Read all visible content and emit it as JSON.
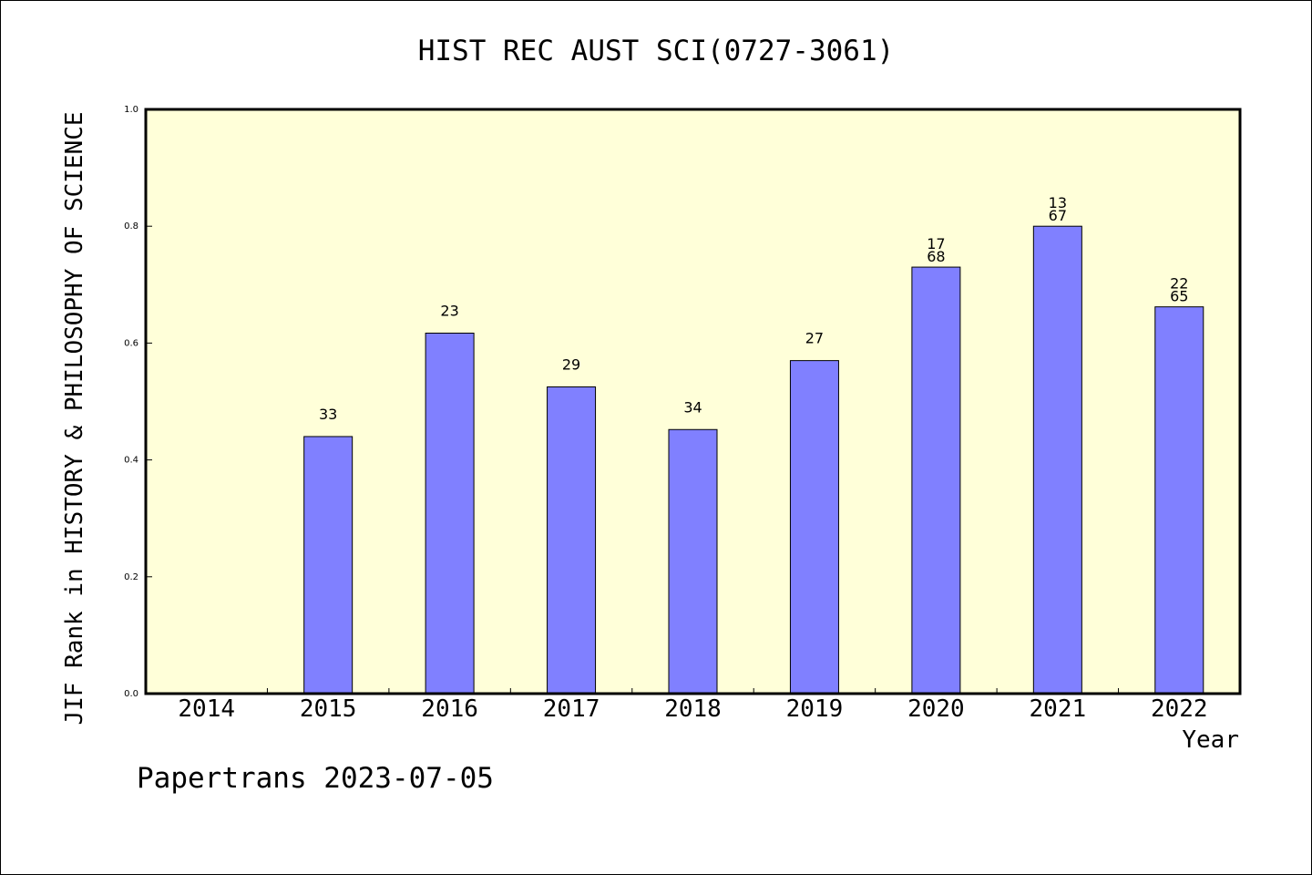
{
  "chart_data": {
    "type": "bar",
    "title": "HIST REC AUST SCI(0727-3061)",
    "xlabel": "Year",
    "ylabel": "JIF Rank in HISTORY & PHILOSOPHY OF SCIENCE",
    "ylim": [
      0,
      1.0
    ],
    "yticks": [
      "0.0",
      "0.2",
      "0.4",
      "0.6",
      "0.8",
      "1.0"
    ],
    "categories": [
      "2014",
      "2015",
      "2016",
      "2017",
      "2018",
      "2019",
      "2020",
      "2021",
      "2022"
    ],
    "values": [
      null,
      0.44,
      0.617,
      0.525,
      0.452,
      0.57,
      0.73,
      0.8,
      0.662
    ],
    "bar_labels": [
      [],
      [
        "33"
      ],
      [
        "23"
      ],
      [
        "29"
      ],
      [
        "34"
      ],
      [
        "27"
      ],
      [
        "17",
        "68"
      ],
      [
        "13",
        "67"
      ],
      [
        "22",
        "65"
      ]
    ],
    "grid": false,
    "plot_background": "#ffffd9",
    "bar_color": "#8080ff"
  },
  "footer": {
    "credit": "Papertrans 2023-07-05"
  }
}
